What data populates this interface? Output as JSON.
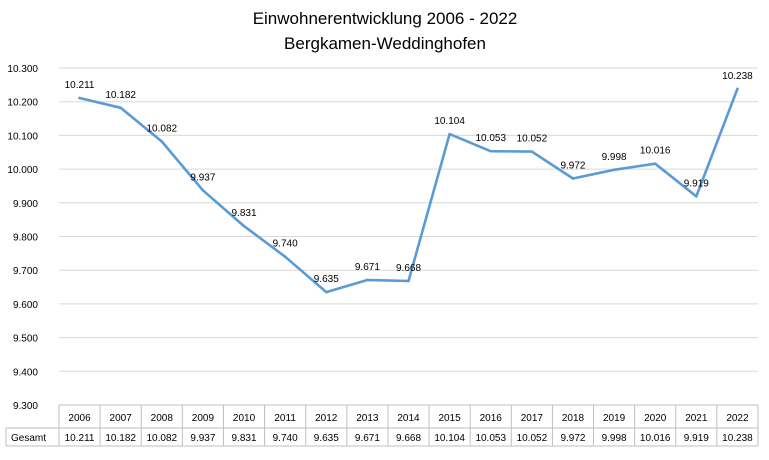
{
  "chart_data": {
    "type": "line",
    "title": "Einwohnerentwicklung 2006 - 2022",
    "subtitle": "Bergkamen-Weddinghofen",
    "categories": [
      "2006",
      "2007",
      "2008",
      "2009",
      "2010",
      "2011",
      "2012",
      "2013",
      "2014",
      "2015",
      "2016",
      "2017",
      "2018",
      "2019",
      "2020",
      "2021",
      "2022"
    ],
    "series": [
      {
        "name": "Gesamt",
        "values": [
          10211,
          10182,
          10082,
          9937,
          9831,
          9740,
          9635,
          9671,
          9668,
          10104,
          10053,
          10052,
          9972,
          9998,
          10016,
          9919,
          10238
        ],
        "labels": [
          "10.211",
          "10.182",
          "10.082",
          "9.937",
          "9.831",
          "9.740",
          "9.635",
          "9.671",
          "9.668",
          "10.104",
          "10.053",
          "10.052",
          "9.972",
          "9.998",
          "10.016",
          "9.919",
          "10.238"
        ],
        "color": "#5b9bd5"
      }
    ],
    "ylim": [
      9300,
      10300
    ],
    "yticks": [
      9300,
      9400,
      9500,
      9600,
      9700,
      9800,
      9900,
      10000,
      10100,
      10200,
      10300
    ],
    "ytick_labels": [
      "9.300",
      "9.400",
      "9.500",
      "9.600",
      "9.700",
      "9.800",
      "9.900",
      "10.000",
      "10.100",
      "10.200",
      "10.300"
    ],
    "grid": true,
    "grid_color": "#d9d9d9",
    "data_table": true
  }
}
